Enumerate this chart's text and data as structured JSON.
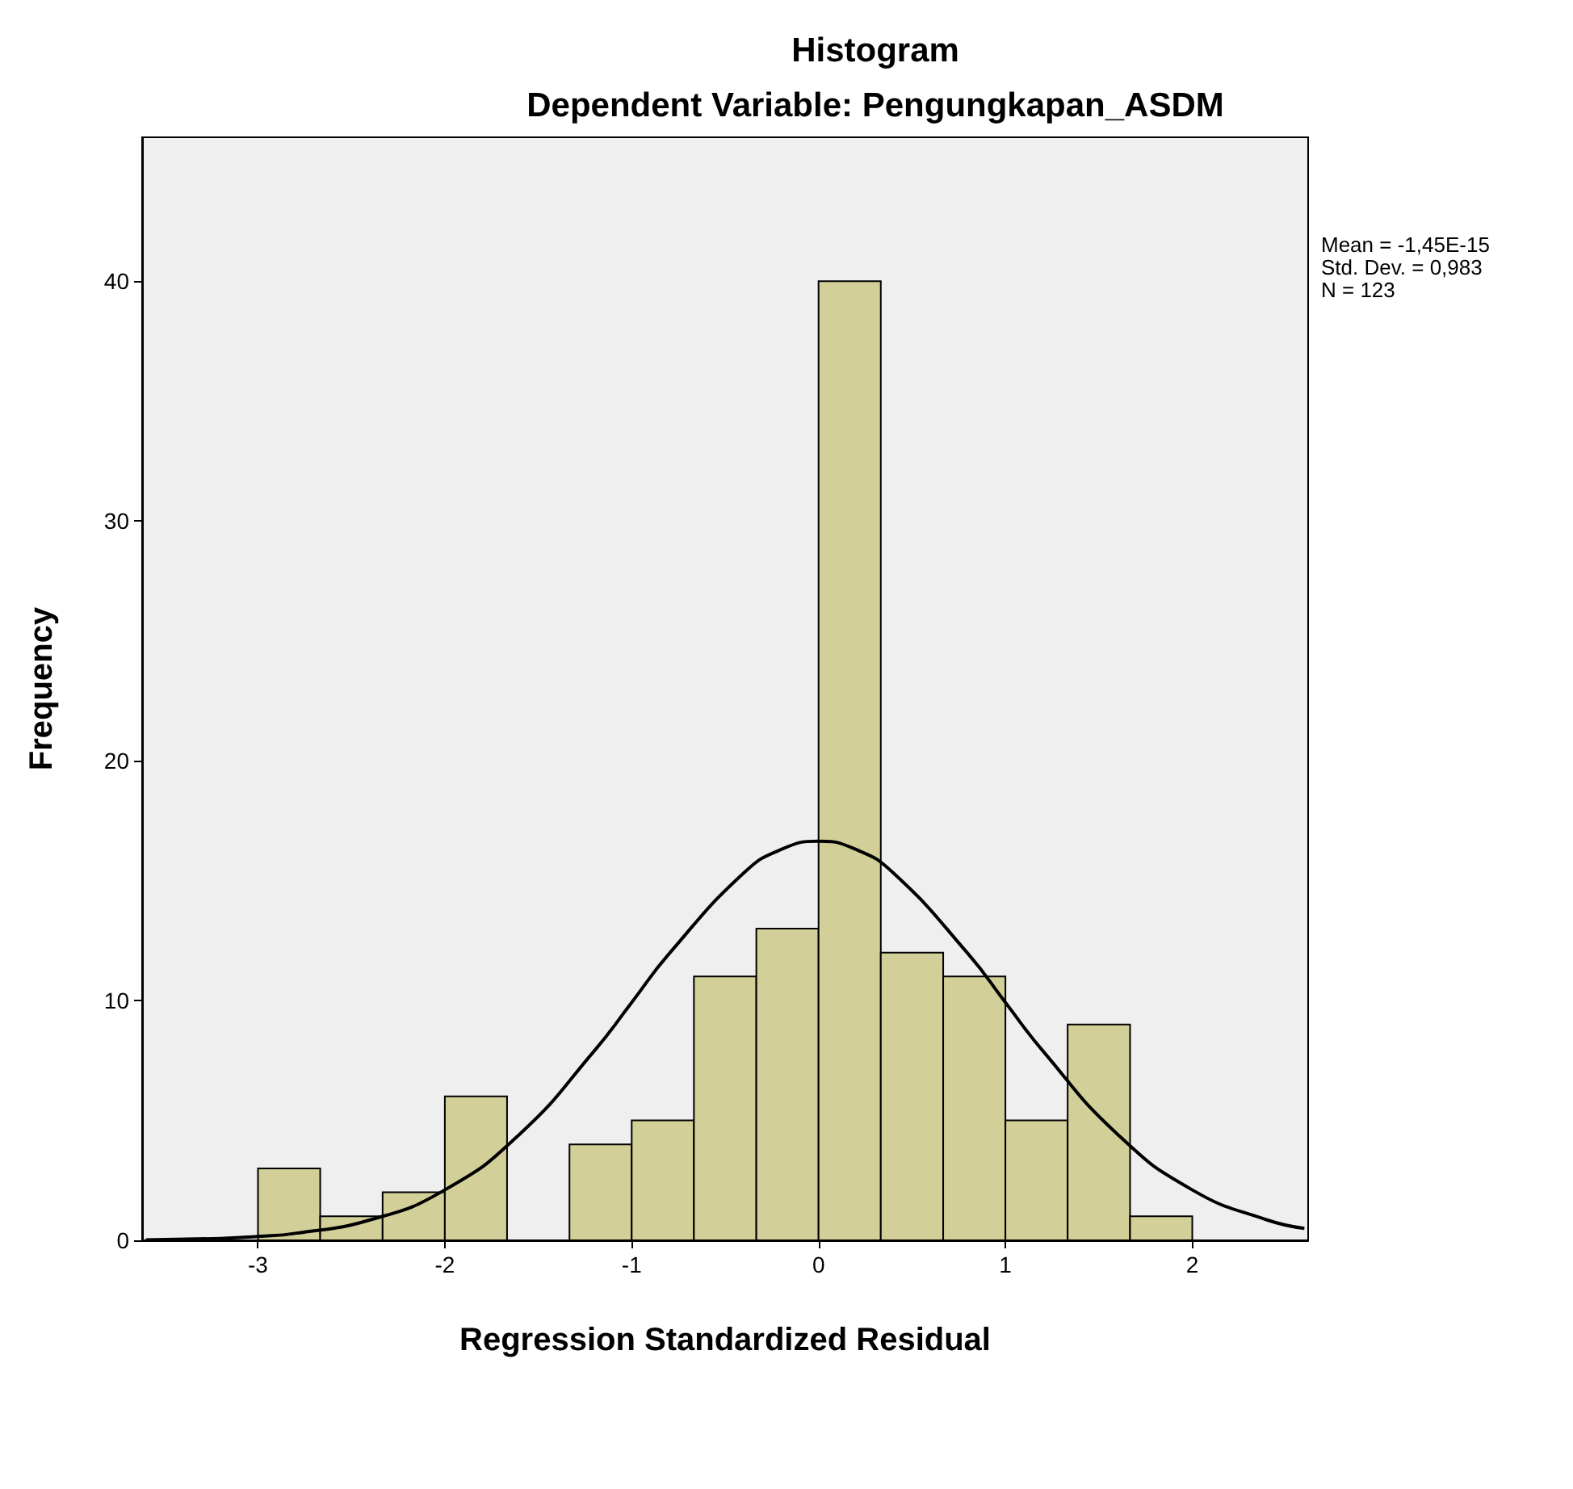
{
  "chart_data": {
    "type": "histogram",
    "title": "Histogram",
    "subtitle": "Dependent Variable: Pengungkapan_ASDM",
    "xlabel": "Regression Standardized Residual",
    "ylabel": "Frequency",
    "annotations": [
      "Mean = -1,45E-15",
      "Std. Dev. = 0,983",
      "N = 123"
    ],
    "bins": [
      -3,
      -2.667,
      -2.333,
      -2,
      -1.667,
      -1.333,
      -1,
      -0.667,
      -0.333,
      0,
      0.333,
      0.667,
      1,
      1.333,
      1.667,
      2
    ],
    "series": [
      {
        "color": "#d3cf98",
        "values": [
          3,
          1,
          2,
          6,
          0,
          4,
          5,
          11,
          13,
          40,
          12,
          11,
          5,
          9,
          1
        ]
      },
      {
        "type": "line",
        "color": "#000000",
        "x": [
          -3.6,
          -3.2,
          -3,
          -2.8,
          -2.4,
          -2,
          -1.6,
          -1.2,
          -1,
          -0.8,
          -0.4,
          -0.2,
          0,
          0.2,
          0.4,
          0.8,
          1,
          1.2,
          1.6,
          2,
          2.4,
          2.6
        ],
        "values": [
          0.02,
          0.08,
          0.16,
          0.29,
          0.85,
          2.1,
          4.42,
          7.9,
          9.92,
          11.95,
          15.32,
          16.3,
          16.64,
          16.3,
          15.32,
          11.95,
          9.92,
          7.9,
          4.42,
          2.1,
          0.85,
          0.5
        ]
      }
    ],
    "xlim": [
      -3.62,
      2.62
    ],
    "xticks": [
      -3,
      -2,
      -1,
      0,
      1,
      2
    ],
    "ylim": [
      0,
      46
    ],
    "yticks": [
      0,
      10,
      20,
      30,
      40
    ],
    "grid": false,
    "marker": "none",
    "line_style": "solid"
  }
}
